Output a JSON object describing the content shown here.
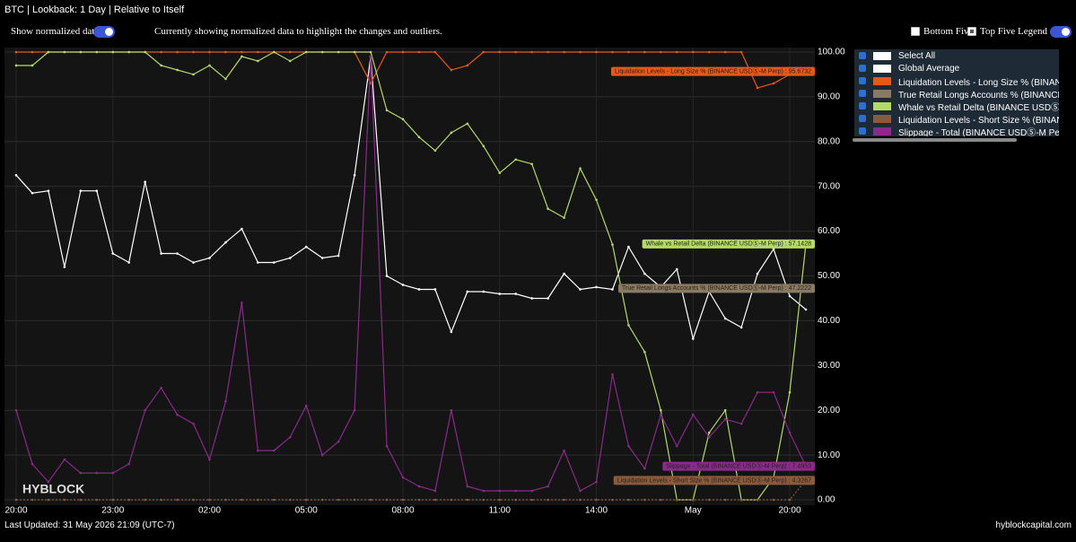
{
  "header": {
    "title": "BTC | Lookback: 1 Day | Relative to Itself",
    "normalized_label": "Show normalized data",
    "status": "Currently showing normalized data to highlight the changes and outliers.",
    "bottom_five": "Bottom Five",
    "top_five": "Top Five",
    "legend_toggle": "Legend"
  },
  "legend": {
    "select_all": "Select All"
  },
  "chart_data": {
    "type": "line",
    "watermark": "HYBLOCK",
    "grid": true,
    "categories": [
      "20:00",
      null,
      null,
      null,
      null,
      null,
      "23:00",
      null,
      null,
      null,
      null,
      null,
      "02:00",
      null,
      null,
      null,
      null,
      null,
      "05:00",
      null,
      null,
      null,
      null,
      null,
      "08:00",
      null,
      null,
      null,
      null,
      null,
      "11:00",
      null,
      null,
      null,
      null,
      null,
      "14:00",
      null,
      null,
      null,
      null,
      null,
      "May",
      null,
      null,
      null,
      null,
      null,
      "20:00",
      null
    ],
    "ylim": [
      -1.2,
      101
    ],
    "yticks": [
      {
        "value": 0,
        "label": "0.00"
      },
      {
        "value": 10,
        "label": "10.00"
      },
      {
        "value": 20,
        "label": "20.00"
      },
      {
        "value": 30,
        "label": "30.00"
      },
      {
        "value": 40,
        "label": "40.00"
      },
      {
        "value": 50,
        "label": "50.00"
      },
      {
        "value": 60,
        "label": "60.00"
      },
      {
        "value": 70,
        "label": "70.00"
      },
      {
        "value": 80,
        "label": "80.00"
      },
      {
        "value": 90,
        "label": "90.00"
      },
      {
        "value": 100,
        "label": "100.00"
      }
    ],
    "series": [
      {
        "name": "Global Average",
        "color": "#ffffff",
        "values": [
          72.5,
          68.5,
          69,
          52,
          69,
          69,
          55,
          53,
          71,
          55,
          55,
          53,
          54,
          57.5,
          60.5,
          53,
          53,
          54,
          56.5,
          54,
          54.5,
          72.5,
          99,
          50,
          48,
          47,
          47,
          37.5,
          46.5,
          46.5,
          46,
          46,
          45,
          45,
          50.5,
          47,
          47.5,
          47,
          56.5,
          50.5,
          47.5,
          51.5,
          36,
          46.5,
          40.5,
          38.5,
          50.5,
          56,
          45.5,
          42.5
        ]
      },
      {
        "name": "Liquidation Levels - Long Size % (BINANCE USDⓈ-M Perp)",
        "color": "#e8581c",
        "end_label": "Liquidation Levels - Long Size % (BINANCE USDⓈ-M Perp) : 95.6732",
        "values": [
          100,
          100,
          100,
          100,
          100,
          100,
          100,
          100,
          100,
          100,
          100,
          100,
          100,
          100,
          100,
          100,
          100,
          100,
          100,
          100,
          100,
          100,
          93,
          100,
          100,
          100,
          100,
          96,
          97,
          100,
          100,
          100,
          100,
          100,
          100,
          100,
          100,
          100,
          100,
          100,
          100,
          100,
          100,
          100,
          100,
          100,
          92,
          93,
          95,
          95.6732
        ]
      },
      {
        "name": "True Retail Longs Accounts % (BINANCE USDⓈ-M Perp)",
        "color": "#8a7a62",
        "end_label": "True Retail Longs Accounts % (BINANCE USDⓈ-M Perp) : 47.2222",
        "values": [
          null,
          null,
          null,
          null,
          null,
          null,
          null,
          null,
          null,
          null,
          null,
          null,
          null,
          null,
          null,
          null,
          null,
          null,
          null,
          null,
          null,
          null,
          null,
          null,
          null,
          null,
          null,
          null,
          null,
          null,
          null,
          null,
          null,
          null,
          null,
          null,
          null,
          null,
          null,
          null,
          null,
          null,
          null,
          null,
          null,
          null,
          null,
          null,
          null,
          47.2222
        ]
      },
      {
        "name": "Whale vs Retail Delta (BINANCE USDⓈ-M Perp)",
        "color": "#b5d96b",
        "end_label": "Whale vs Retail Delta (BINANCE USDⓈ-M Perp) : 57.1428",
        "values": [
          97,
          97,
          100,
          100,
          100,
          100,
          100,
          100,
          100,
          97,
          96,
          95,
          97,
          94,
          99,
          98,
          100,
          98,
          100,
          100,
          100,
          100,
          100,
          87,
          85,
          81,
          78,
          82,
          84,
          79,
          73,
          76,
          75,
          65,
          63,
          74,
          67,
          57,
          39,
          33,
          20,
          0,
          0,
          15,
          20,
          0,
          0,
          5,
          24,
          57.1428
        ]
      },
      {
        "name": "Liquidation Levels - Short Size % (BINANCE USDⓈ-M Perp)",
        "color": "#8b5a3a",
        "end_label": "Liquidation Levels - Short Size % (BINANCE USDⓈ-M Perp) : 4.3267",
        "values": [
          0,
          0,
          0,
          0,
          0,
          0,
          0,
          0,
          0,
          0,
          0,
          0,
          0,
          0,
          0,
          0,
          0,
          0,
          0,
          0,
          0,
          0,
          0,
          0,
          0,
          0,
          0,
          0,
          0,
          0,
          0,
          0,
          0,
          0,
          0,
          0,
          0,
          0,
          0,
          0,
          0,
          0,
          0,
          0,
          0,
          0,
          0,
          0,
          0,
          4.3267
        ]
      },
      {
        "name": "Slippage - Total (BINANCE USDⓈ-M Perp)",
        "color": "#8a2a8a",
        "end_label": "Slippage - Total (BINANCE USDⓈ-M Perp) : 7.4953",
        "values": [
          20,
          8,
          4,
          9,
          6,
          6,
          6,
          8,
          20,
          25,
          19,
          17,
          9,
          22,
          44,
          11,
          11,
          14,
          21,
          10,
          13,
          20,
          99,
          12,
          5,
          3,
          2,
          20,
          3,
          2,
          2,
          2,
          2,
          3,
          11,
          2,
          4,
          28,
          12,
          7,
          19,
          12,
          19,
          14,
          18,
          17,
          24,
          24,
          15,
          7.4953
        ]
      }
    ]
  },
  "footer": {
    "last_updated": "Last Updated: 31 May 2026 21:09 (UTC-7)",
    "site": "hyblockcapital.com"
  }
}
